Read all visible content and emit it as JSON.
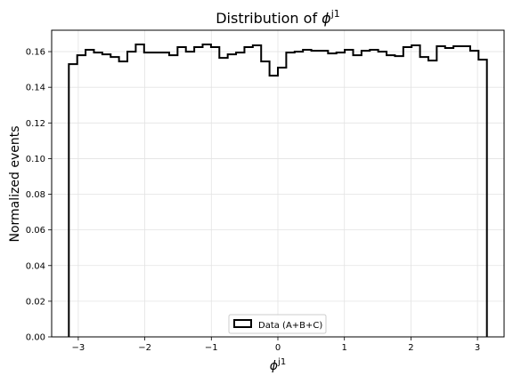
{
  "chart_data": {
    "type": "histogram",
    "title": "Distribution of ",
    "title_math": "ϕ",
    "title_sup": "j1",
    "xlabel_math": "ϕ",
    "xlabel_sup": "j1",
    "ylabel": "Normalized events",
    "xlim": [
      -3.4,
      3.4
    ],
    "ylim": [
      0,
      0.172
    ],
    "xticks": [
      -3,
      -2,
      -1,
      0,
      1,
      2,
      3
    ],
    "yticks": [
      0.0,
      0.02,
      0.04,
      0.06,
      0.08,
      0.1,
      0.12,
      0.14,
      0.16
    ],
    "ytick_labels": [
      "0.00",
      "0.02",
      "0.04",
      "0.06",
      "0.08",
      "0.10",
      "0.12",
      "0.14",
      "0.16"
    ],
    "grid": true,
    "legend_position": "bottom-center",
    "bin_range": [
      -3.14159,
      3.14159
    ],
    "series": [
      {
        "name": "Data (A+B+C)",
        "color": "#000000",
        "values": [
          0.153,
          0.158,
          0.161,
          0.1595,
          0.1585,
          0.157,
          0.1545,
          0.16,
          0.164,
          0.1595,
          0.1595,
          0.1595,
          0.158,
          0.1625,
          0.16,
          0.1625,
          0.164,
          0.1625,
          0.1565,
          0.1585,
          0.1595,
          0.1625,
          0.1635,
          0.1545,
          0.1465,
          0.151,
          0.1595,
          0.16,
          0.161,
          0.1605,
          0.1605,
          0.159,
          0.1595,
          0.161,
          0.158,
          0.1605,
          0.161,
          0.16,
          0.158,
          0.1575,
          0.1625,
          0.1635,
          0.157,
          0.155,
          0.163,
          0.162,
          0.163,
          0.163,
          0.1605,
          0.1555
        ]
      }
    ]
  }
}
